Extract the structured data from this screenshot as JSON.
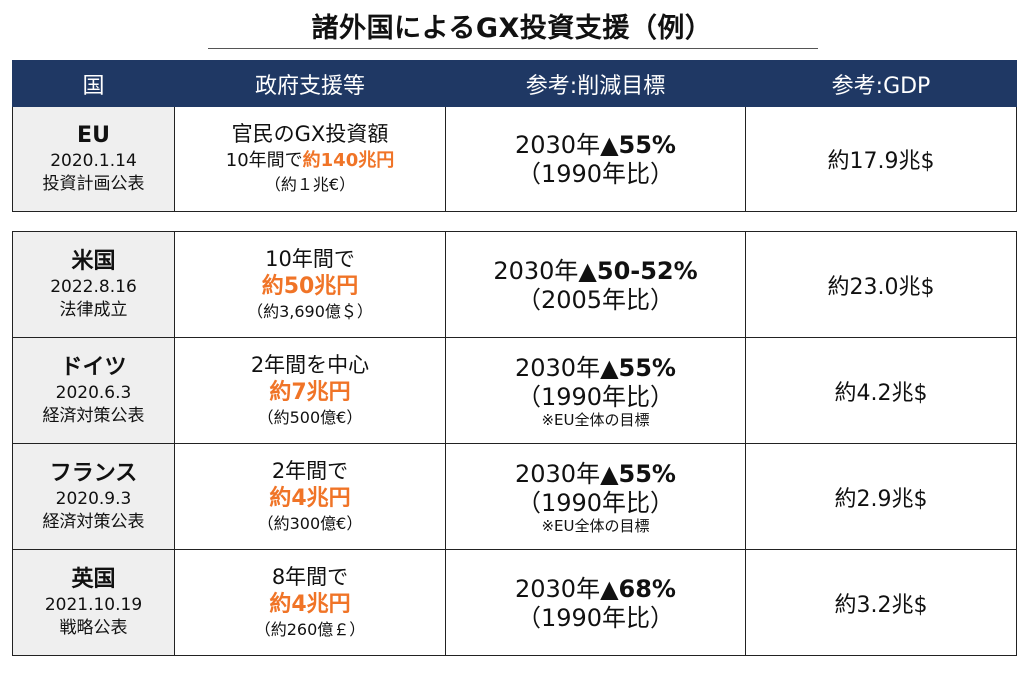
{
  "title": "諸外国によるGX投資支援（例）",
  "headers": [
    "国",
    "政府支援等",
    "参考:削減目標",
    "参考:GDP"
  ],
  "eu": {
    "name": "EU",
    "date": "2020.1.14",
    "note": "投資計画公表",
    "support_a": "官民のGX投資額",
    "support_b_prefix": "10年間で",
    "support_b_highlight": "約140兆円",
    "support_c": "（約１兆€）",
    "target_year": "2030年",
    "target_value": "▲55%",
    "target_base": "（1990年比）",
    "gdp": "約17.9兆$"
  },
  "rows": [
    {
      "name": "米国",
      "date": "2022.8.16",
      "note": "法律成立",
      "support_a": "10年間で",
      "support_b": "約50兆円",
      "support_c": "（約3,690億＄）",
      "target_year": "2030年",
      "target_value": "▲50-52%",
      "target_base": "（2005年比）",
      "target_note": "",
      "gdp": "約23.0兆$"
    },
    {
      "name": "ドイツ",
      "date": "2020.6.3",
      "note": "経済対策公表",
      "support_a": "2年間を中心",
      "support_b": "約7兆円",
      "support_c": "（約500億€）",
      "target_year": "2030年",
      "target_value": "▲55%",
      "target_base": "（1990年比）",
      "target_note": "※EU全体の目標",
      "gdp": "約4.2兆$"
    },
    {
      "name": "フランス",
      "date": "2020.9.3",
      "note": "経済対策公表",
      "support_a": "2年間で",
      "support_b": "約4兆円",
      "support_c": "（約300億€）",
      "target_year": "2030年",
      "target_value": "▲55%",
      "target_base": "（1990年比）",
      "target_note": "※EU全体の目標",
      "gdp": "約2.9兆$"
    },
    {
      "name": "英国",
      "date": "2021.10.19",
      "note": "戦略公表",
      "support_a": "8年間で",
      "support_b": "約4兆円",
      "support_c": "（約260億￡）",
      "target_year": "2030年",
      "target_value": "▲68%",
      "target_base": "（1990年比）",
      "target_note": "",
      "gdp": "約3.2兆$"
    }
  ]
}
